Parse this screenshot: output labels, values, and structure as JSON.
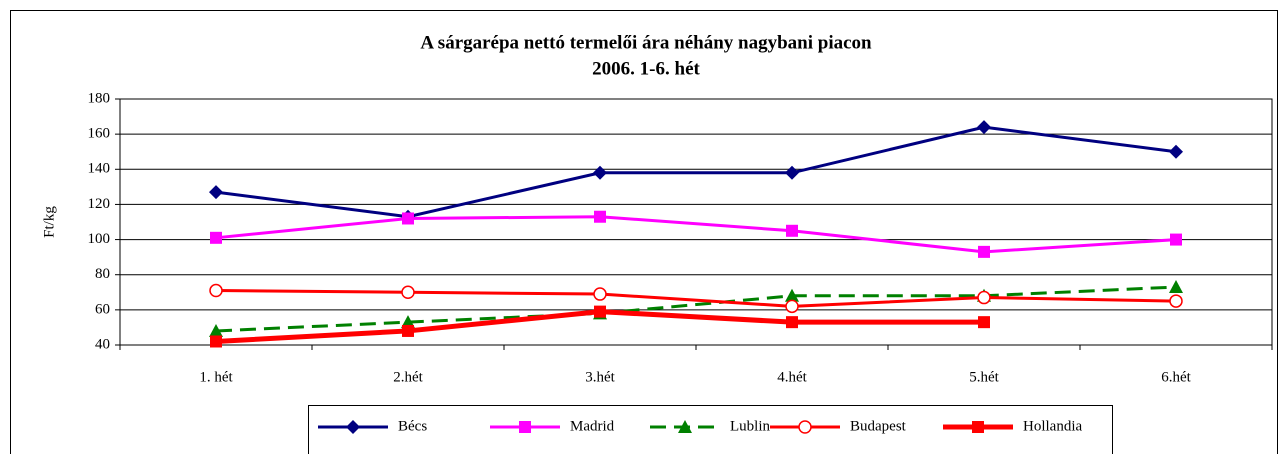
{
  "chart_data": {
    "type": "line",
    "title": "A sárgarépa nettó termelői ára néhány nagybani piacon",
    "subtitle": "2006. 1-6. hét",
    "y_label": "Ft/kg",
    "categories": [
      "1. hét",
      "2.hét",
      "3.hét",
      "4.hét",
      "5.hét",
      "6.hét"
    ],
    "ylim": [
      40,
      180
    ],
    "yticks": [
      40,
      60,
      80,
      100,
      120,
      140,
      160,
      180
    ],
    "grid": true,
    "legend": "bottom",
    "series": [
      {
        "name": "Bécs",
        "color": "#000080",
        "marker": "diamond",
        "line_style": "solid",
        "values": [
          127,
          113,
          138,
          138,
          164,
          150
        ]
      },
      {
        "name": "Madrid",
        "color": "#ff00ff",
        "marker": "square",
        "line_style": "solid",
        "values": [
          101,
          112,
          113,
          105,
          93,
          100
        ]
      },
      {
        "name": "Lublin",
        "color": "#008000",
        "marker": "triangle",
        "line_style": "dashed",
        "values": [
          48,
          53,
          58,
          68,
          68,
          73
        ]
      },
      {
        "name": "Budapest",
        "color": "#ff0000",
        "marker": "open-circle",
        "line_style": "solid",
        "values": [
          71,
          70,
          69,
          62,
          67,
          65
        ]
      },
      {
        "name": "Hollandia",
        "color": "#ff0000",
        "marker": "square",
        "line_style": "bold",
        "values": [
          42,
          48,
          59,
          53,
          53,
          null
        ]
      }
    ]
  }
}
